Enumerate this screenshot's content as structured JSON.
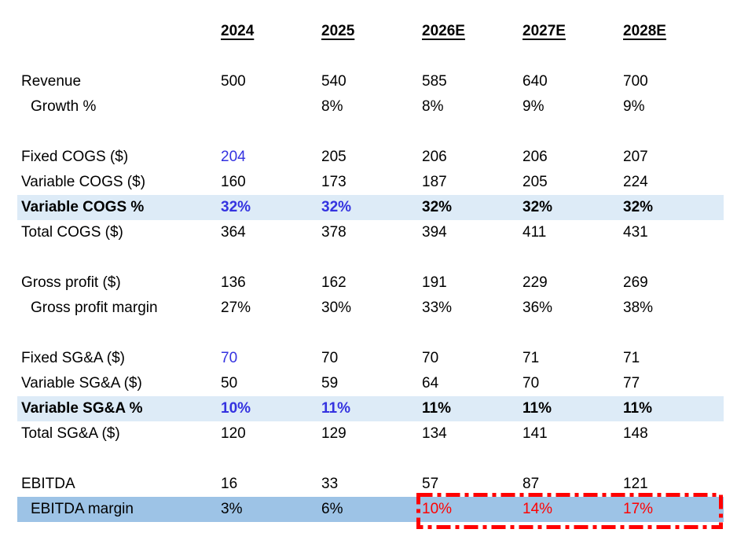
{
  "colors": {
    "blue": "#3432E0",
    "red": "#FF0000",
    "highlight_light": "#DDEBF7",
    "highlight_medium": "#9DC3E6"
  },
  "table": {
    "column_headers": [
      "2024",
      "2025",
      "2026E",
      "2027E",
      "2028E"
    ],
    "rows": [
      {
        "spacer": true
      },
      {
        "label": "Revenue",
        "values": [
          {
            "t": "500"
          },
          {
            "t": "540"
          },
          {
            "t": "585"
          },
          {
            "t": "640"
          },
          {
            "t": "700"
          }
        ]
      },
      {
        "label": "Growth %",
        "indent": true,
        "values": [
          {
            "t": ""
          },
          {
            "t": "8%"
          },
          {
            "t": "8%"
          },
          {
            "t": "9%"
          },
          {
            "t": "9%"
          }
        ]
      },
      {
        "spacer": true
      },
      {
        "label": "Fixed COGS ($)",
        "values": [
          {
            "t": "204",
            "c": "blue"
          },
          {
            "t": "205"
          },
          {
            "t": "206"
          },
          {
            "t": "206"
          },
          {
            "t": "207"
          }
        ]
      },
      {
        "label": "Variable COGS ($)",
        "values": [
          {
            "t": "160"
          },
          {
            "t": "173"
          },
          {
            "t": "187"
          },
          {
            "t": "205"
          },
          {
            "t": "224"
          }
        ]
      },
      {
        "label": "Variable COGS %",
        "bold": true,
        "highlight": "light",
        "values": [
          {
            "t": "32%",
            "c": "blue"
          },
          {
            "t": "32%",
            "c": "blue"
          },
          {
            "t": "32%"
          },
          {
            "t": "32%"
          },
          {
            "t": "32%"
          }
        ]
      },
      {
        "label": "Total COGS ($)",
        "values": [
          {
            "t": "364"
          },
          {
            "t": "378"
          },
          {
            "t": "394"
          },
          {
            "t": "411"
          },
          {
            "t": "431"
          }
        ]
      },
      {
        "spacer": true
      },
      {
        "label": "Gross profit ($)",
        "values": [
          {
            "t": "136"
          },
          {
            "t": "162"
          },
          {
            "t": "191"
          },
          {
            "t": "229"
          },
          {
            "t": "269"
          }
        ]
      },
      {
        "label": "Gross profit margin",
        "indent": true,
        "values": [
          {
            "t": "27%"
          },
          {
            "t": "30%"
          },
          {
            "t": "33%"
          },
          {
            "t": "36%"
          },
          {
            "t": "38%"
          }
        ]
      },
      {
        "spacer": true
      },
      {
        "label": "Fixed SG&A ($)",
        "values": [
          {
            "t": "70",
            "c": "blue"
          },
          {
            "t": "70"
          },
          {
            "t": "70"
          },
          {
            "t": "71"
          },
          {
            "t": "71"
          }
        ]
      },
      {
        "label": "Variable SG&A ($)",
        "values": [
          {
            "t": "50"
          },
          {
            "t": "59"
          },
          {
            "t": "64"
          },
          {
            "t": "70"
          },
          {
            "t": "77"
          }
        ]
      },
      {
        "label": "Variable SG&A %",
        "bold": true,
        "highlight": "light",
        "values": [
          {
            "t": "10%",
            "c": "blue"
          },
          {
            "t": "11%",
            "c": "blue"
          },
          {
            "t": "11%"
          },
          {
            "t": "11%"
          },
          {
            "t": "11%"
          }
        ]
      },
      {
        "label": "Total SG&A ($)",
        "values": [
          {
            "t": "120"
          },
          {
            "t": "129"
          },
          {
            "t": "134"
          },
          {
            "t": "141"
          },
          {
            "t": "148"
          }
        ]
      },
      {
        "spacer": true
      },
      {
        "label": "EBITDA",
        "values": [
          {
            "t": "16"
          },
          {
            "t": "33"
          },
          {
            "t": "57"
          },
          {
            "t": "87"
          },
          {
            "t": "121"
          }
        ]
      },
      {
        "label": "EBITDA margin",
        "indent": true,
        "highlight": "medium",
        "values": [
          {
            "t": "3%"
          },
          {
            "t": "6%"
          },
          {
            "t": "10%",
            "c": "red"
          },
          {
            "t": "14%",
            "c": "red"
          },
          {
            "t": "17%",
            "c": "red"
          }
        ]
      }
    ]
  },
  "annotation": {
    "style": "dash-dot-box",
    "color": "#FF0000"
  }
}
